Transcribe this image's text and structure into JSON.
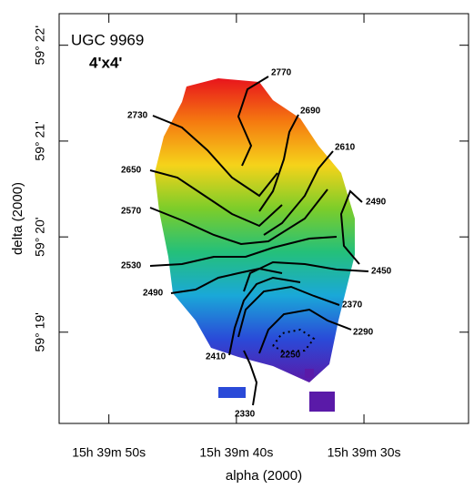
{
  "chart_data": {
    "type": "contour",
    "title": "UGC 9969",
    "subtitle": "4'x4'",
    "x_label": "alpha (2000)",
    "y_label": "delta (2000)",
    "xlim": [
      53.9,
      21.8
    ],
    "xticks": [
      {
        "value": 50,
        "label": "15h 39m 50s"
      },
      {
        "value": 40,
        "label": "15h 39m 40s"
      },
      {
        "value": 30,
        "label": "15h 39m 30s"
      }
    ],
    "ylim": [
      59.3008,
      59.3722
    ],
    "yticks": [
      {
        "value": 59.3667,
        "label": "59° 22'"
      },
      {
        "value": 59.35,
        "label": "59° 21'"
      },
      {
        "value": 59.3333,
        "label": "59° 20'"
      },
      {
        "value": 59.3167,
        "label": "59° 19'"
      }
    ],
    "contour_levels": [
      2770,
      2730,
      2690,
      2650,
      2610,
      2570,
      2490,
      2530,
      2450,
      2490,
      2370,
      2290,
      2410,
      2250,
      2330
    ],
    "colormap": [
      "#e8141c",
      "#f57a10",
      "#f5d31a",
      "#7ccd2a",
      "#24c07a",
      "#1aa8d8",
      "#2a4ad8",
      "#5a1aa8"
    ]
  }
}
